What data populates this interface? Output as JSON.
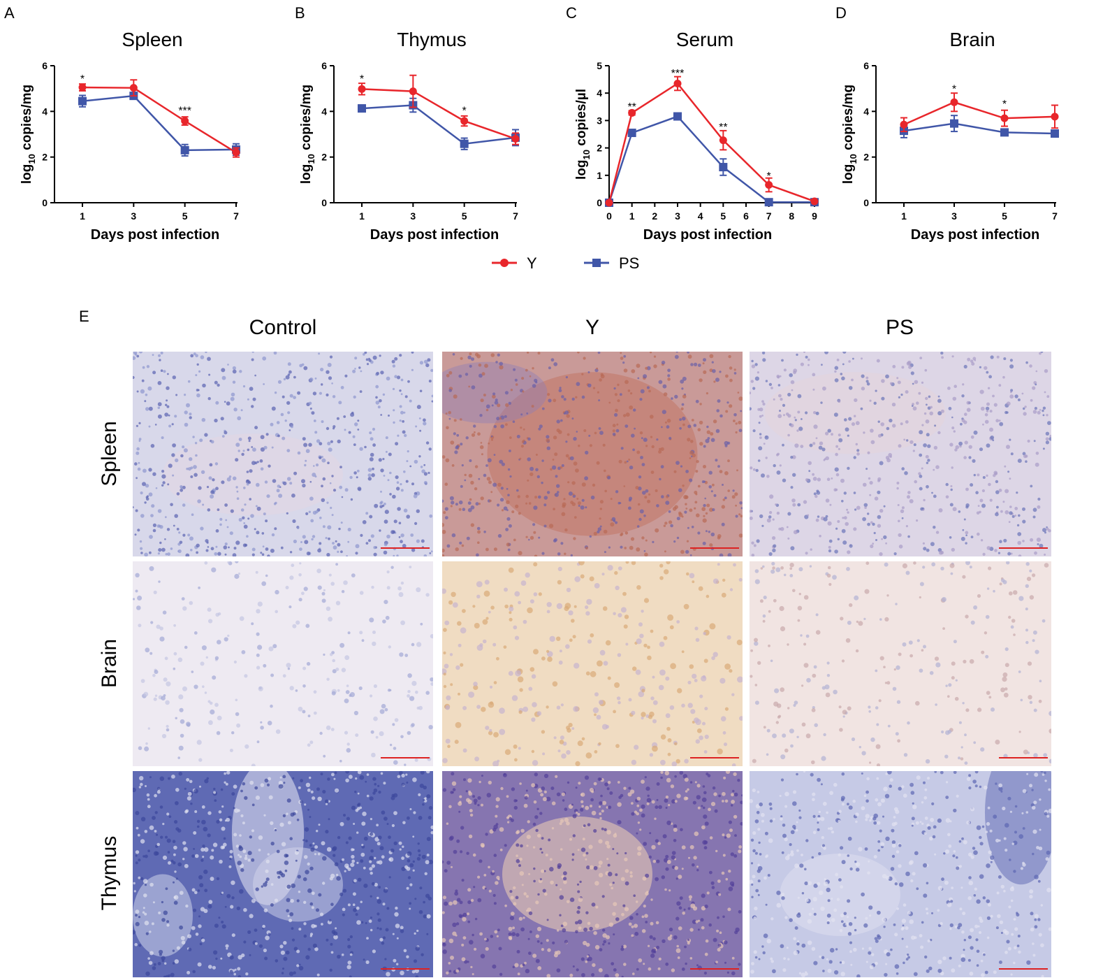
{
  "panel_letters": [
    "A",
    "B",
    "C",
    "D",
    "E"
  ],
  "chart_data": [
    {
      "type": "line",
      "title": "Spleen",
      "xlabel": "Days post infection",
      "ylabel_main": "log",
      "ylabel_sub": "10",
      "ylabel_rest": " copies/mg",
      "xticks": [
        1,
        3,
        5,
        7
      ],
      "xlim": [
        0,
        8
      ],
      "ylim": [
        0,
        6
      ],
      "yticks": [
        0,
        2,
        4,
        6
      ],
      "series": [
        {
          "name": "Y",
          "x": [
            1,
            3,
            5,
            7
          ],
          "y": [
            5.05,
            5.03,
            3.58,
            2.2
          ],
          "err": [
            0.15,
            0.35,
            0.18,
            0.2
          ]
        },
        {
          "name": "PS",
          "x": [
            1,
            3,
            5,
            7
          ],
          "y": [
            4.45,
            4.68,
            2.3,
            2.33
          ],
          "err": [
            0.25,
            0.15,
            0.25,
            0.25
          ]
        }
      ],
      "annotations": [
        {
          "x": 1,
          "text": "*",
          "y": 5.45
        },
        {
          "x": 5,
          "text": "***",
          "y": 4.05
        }
      ]
    },
    {
      "type": "line",
      "title": "Thymus",
      "xlabel": "Days post infection",
      "ylabel_main": "log",
      "ylabel_sub": "10",
      "ylabel_rest": " copies/mg",
      "xticks": [
        1,
        3,
        5,
        7
      ],
      "xlim": [
        0,
        8
      ],
      "ylim": [
        0,
        6
      ],
      "yticks": [
        0,
        2,
        4,
        6
      ],
      "series": [
        {
          "name": "Y",
          "x": [
            1,
            3,
            5,
            7
          ],
          "y": [
            4.98,
            4.88,
            3.58,
            2.8
          ],
          "err": [
            0.25,
            0.7,
            0.22,
            0.25
          ]
        },
        {
          "name": "PS",
          "x": [
            1,
            3,
            5,
            7
          ],
          "y": [
            4.13,
            4.27,
            2.58,
            2.85
          ],
          "err": [
            0.15,
            0.3,
            0.25,
            0.35
          ]
        }
      ],
      "annotations": [
        {
          "x": 1,
          "text": "*",
          "y": 5.45
        },
        {
          "x": 5,
          "text": "*",
          "y": 4.05
        }
      ]
    },
    {
      "type": "line",
      "title": "Serum",
      "xlabel": "Days post infection",
      "ylabel_main": "log",
      "ylabel_sub": "10",
      "ylabel_rest": " copies/µl",
      "xticks": [
        0,
        1,
        2,
        3,
        4,
        5,
        6,
        7,
        8,
        9
      ],
      "xlim": [
        0,
        9
      ],
      "ylim": [
        0,
        5
      ],
      "yticks": [
        0,
        1,
        2,
        3,
        4,
        5
      ],
      "series": [
        {
          "name": "Y",
          "x": [
            0,
            1,
            3,
            5,
            7,
            9
          ],
          "y": [
            0,
            3.28,
            4.35,
            2.28,
            0.65,
            0.05
          ],
          "err": [
            0,
            0.08,
            0.25,
            0.35,
            0.25,
            0
          ]
        },
        {
          "name": "PS",
          "x": [
            0,
            1,
            3,
            5,
            7,
            9
          ],
          "y": [
            0,
            2.55,
            3.15,
            1.3,
            0.02,
            0.02
          ],
          "err": [
            0,
            0.08,
            0.1,
            0.3,
            0,
            0
          ]
        }
      ],
      "annotations": [
        {
          "x": 1,
          "text": "**",
          "y": 3.52
        },
        {
          "x": 3,
          "text": "***",
          "y": 4.75
        },
        {
          "x": 5,
          "text": "**",
          "y": 2.78
        },
        {
          "x": 7,
          "text": "*",
          "y": 1.0
        }
      ]
    },
    {
      "type": "line",
      "title": "Brain",
      "xlabel": "Days post infection",
      "ylabel_main": "log",
      "ylabel_sub": "10",
      "ylabel_rest": " copies/mg",
      "xticks": [
        1,
        3,
        5,
        7
      ],
      "xlim": [
        0,
        8
      ],
      "ylim": [
        0,
        6
      ],
      "yticks": [
        0,
        2,
        4,
        6
      ],
      "series": [
        {
          "name": "Y",
          "x": [
            1,
            3,
            5,
            7
          ],
          "y": [
            3.42,
            4.4,
            3.7,
            3.77
          ],
          "err": [
            0.3,
            0.4,
            0.35,
            0.5
          ]
        },
        {
          "name": "PS",
          "x": [
            1,
            3,
            5,
            7
          ],
          "y": [
            3.15,
            3.47,
            3.08,
            3.03
          ],
          "err": [
            0.3,
            0.35,
            0.1,
            0.1
          ]
        }
      ],
      "annotations": [
        {
          "x": 3,
          "text": "*",
          "y": 5.0
        },
        {
          "x": 5,
          "text": "*",
          "y": 4.35
        }
      ]
    }
  ],
  "legend": [
    {
      "name": "Y",
      "color": "#e8262b",
      "marker": "circle"
    },
    {
      "name": "PS",
      "color": "#4056a8",
      "marker": "square"
    }
  ],
  "micrograph": {
    "columns": [
      "Control",
      "Y",
      "PS"
    ],
    "rows": [
      "Spleen",
      "Brain",
      "Thymus"
    ]
  },
  "colors": {
    "Y": "#e8262b",
    "PS": "#4056a8"
  }
}
